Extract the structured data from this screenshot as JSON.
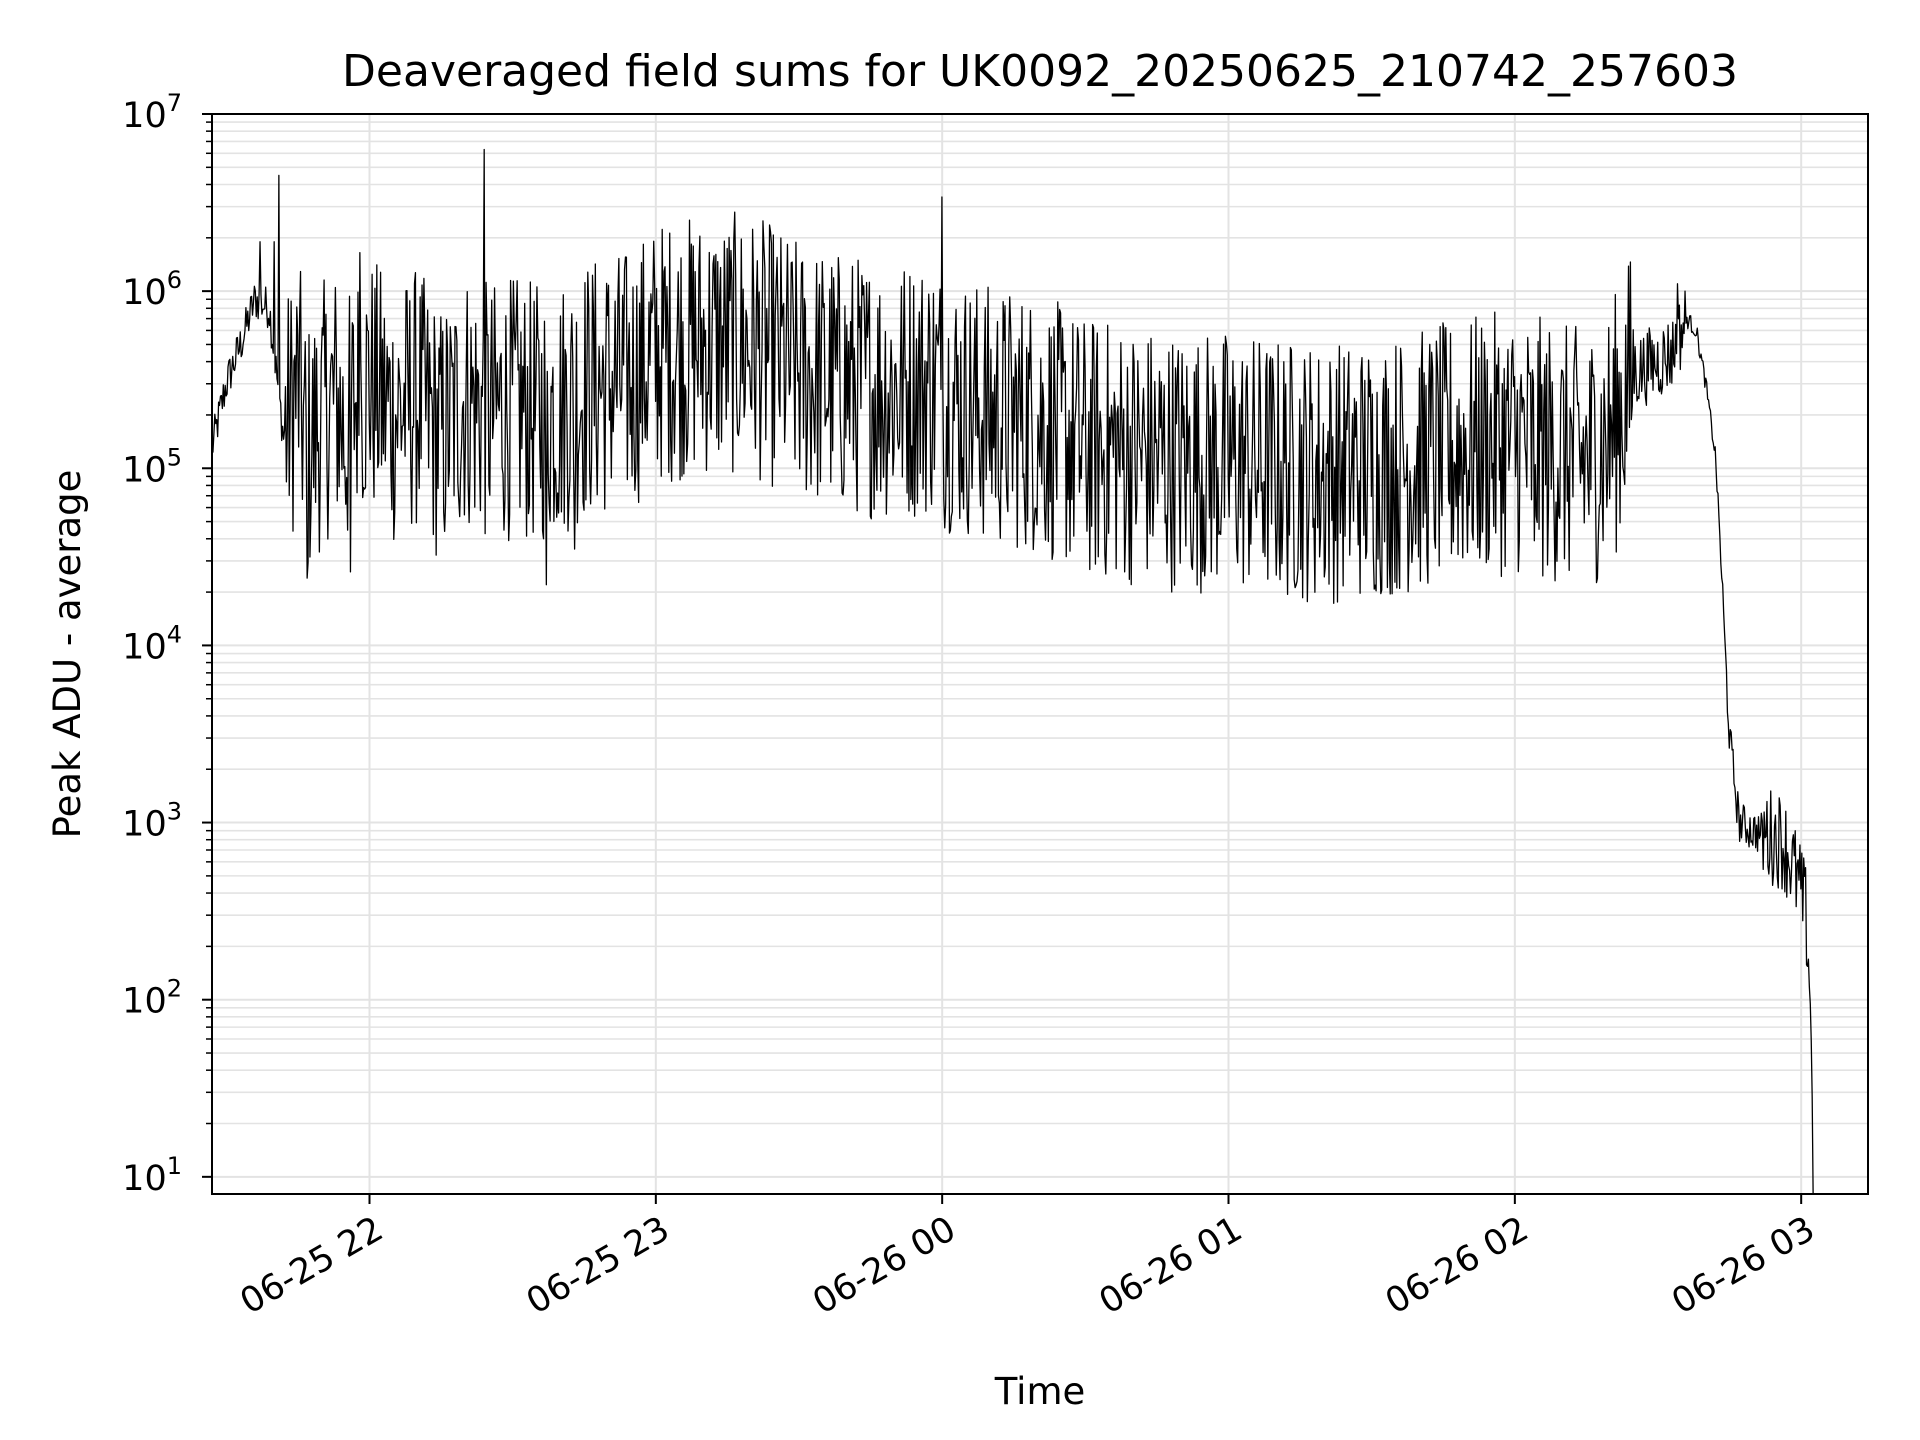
{
  "chart_data": {
    "type": "line",
    "title": "Deaveraged field sums for UK0092_20250625_210742_257603",
    "xlabel": "Time",
    "ylabel": "Peak ADU - average",
    "yscale": "log",
    "ylim": [
      8,
      10000000
    ],
    "xlim": [
      "2025-06-25 21:27",
      "2025-06-26 03:14"
    ],
    "grid": true,
    "x_ticks": [
      {
        "time": "2025-06-25 22:00",
        "label": "06-25 22"
      },
      {
        "time": "2025-06-25 23:00",
        "label": "06-25 23"
      },
      {
        "time": "2025-06-26 00:00",
        "label": "06-26 00"
      },
      {
        "time": "2025-06-26 01:00",
        "label": "06-26 01"
      },
      {
        "time": "2025-06-26 02:00",
        "label": "06-26 02"
      },
      {
        "time": "2025-06-26 03:00",
        "label": "06-26 03"
      }
    ],
    "y_ticks": [
      {
        "value": 10,
        "base": "10",
        "exp": "1"
      },
      {
        "value": 100,
        "base": "10",
        "exp": "2"
      },
      {
        "value": 1000,
        "base": "10",
        "exp": "3"
      },
      {
        "value": 10000,
        "base": "10",
        "exp": "4"
      },
      {
        "value": 100000,
        "base": "10",
        "exp": "5"
      },
      {
        "value": 1000000,
        "base": "10",
        "exp": "6"
      },
      {
        "value": 10000000,
        "base": "10",
        "exp": "7"
      }
    ],
    "line_color": "#000000",
    "grid_color": "#e3e3e3",
    "series": [
      {
        "x": [
          "2025-06-25 21:27",
          "2025-06-25 21:30",
          "2025-06-25 21:33",
          "2025-06-25 21:36",
          "2025-06-25 21:39",
          "2025-06-25 21:42",
          "2025-06-25 21:45",
          "2025-06-25 21:47",
          "2025-06-25 21:50",
          "2025-06-25 21:53",
          "2025-06-25 21:55",
          "2025-06-25 21:57",
          "2025-06-25 22:00",
          "2025-06-25 22:05",
          "2025-06-25 22:10",
          "2025-06-25 22:15",
          "2025-06-25 22:20",
          "2025-06-25 22:25",
          "2025-06-25 22:30",
          "2025-06-25 22:35",
          "2025-06-25 22:40",
          "2025-06-25 22:45",
          "2025-06-25 22:50",
          "2025-06-25 22:55",
          "2025-06-25 23:00",
          "2025-06-25 23:10",
          "2025-06-25 23:20",
          "2025-06-25 23:30",
          "2025-06-25 23:40",
          "2025-06-25 23:50",
          "2025-06-25 23:59",
          "2025-06-26 00:00",
          "2025-06-26 00:10",
          "2025-06-26 00:20",
          "2025-06-26 00:30",
          "2025-06-26 00:40",
          "2025-06-26 00:50",
          "2025-06-26 01:00",
          "2025-06-26 01:10",
          "2025-06-26 01:20",
          "2025-06-26 01:30",
          "2025-06-26 01:40",
          "2025-06-26 01:50",
          "2025-06-26 02:00",
          "2025-06-26 02:10",
          "2025-06-26 02:15",
          "2025-06-26 02:20",
          "2025-06-26 02:25",
          "2025-06-26 02:30",
          "2025-06-26 02:33",
          "2025-06-26 02:36",
          "2025-06-26 02:38",
          "2025-06-26 02:40",
          "2025-06-26 02:42",
          "2025-06-26 02:43",
          "2025-06-26 02:44",
          "2025-06-26 02:45",
          "2025-06-26 02:47",
          "2025-06-26 02:50",
          "2025-06-26 02:53",
          "2025-06-26 02:56",
          "2025-06-26 02:58",
          "2025-06-26 03:00",
          "2025-06-26 03:01",
          "2025-06-26 03:02",
          "2025-06-26 03:02:30"
        ],
        "y": [
          130000,
          300000,
          500000,
          900000,
          800000,
          150000,
          300000,
          120000,
          200000,
          250000,
          150000,
          250000,
          300000,
          200000,
          250000,
          150000,
          250000,
          200000,
          220000,
          200000,
          220000,
          280000,
          300000,
          320000,
          450000,
          500000,
          500000,
          350000,
          300000,
          280000,
          300000,
          250000,
          200000,
          180000,
          130000,
          120000,
          110000,
          110000,
          100000,
          95000,
          100000,
          110000,
          130000,
          140000,
          120000,
          110000,
          150000,
          350000,
          400000,
          450000,
          700000,
          600000,
          300000,
          120000,
          40000,
          10000,
          3000,
          1000,
          900,
          850,
          800,
          600,
          400,
          300,
          100,
          8
        ]
      }
    ],
    "spikes": [
      {
        "x": "2025-06-25 21:41",
        "y": 4500000
      },
      {
        "x": "2025-06-25 21:40",
        "y": 1900000
      },
      {
        "x": "2025-06-25 21:37",
        "y": 1900000
      },
      {
        "x": "2025-06-25 21:58",
        "y": 1650000
      },
      {
        "x": "2025-06-25 22:24",
        "y": 6300000
      },
      {
        "x": "2025-06-26 00:00",
        "y": 3400000
      },
      {
        "x": "2025-06-26 02:34",
        "y": 1100000
      }
    ],
    "dips": [
      {
        "x": "2025-06-25 21:47",
        "y": 24000
      },
      {
        "x": "2025-06-25 21:56",
        "y": 26000
      },
      {
        "x": "2025-06-25 22:37",
        "y": 22000
      },
      {
        "x": "2025-06-25 22:43",
        "y": 35000
      },
      {
        "x": "2025-06-26 02:04",
        "y": 39000
      }
    ]
  }
}
